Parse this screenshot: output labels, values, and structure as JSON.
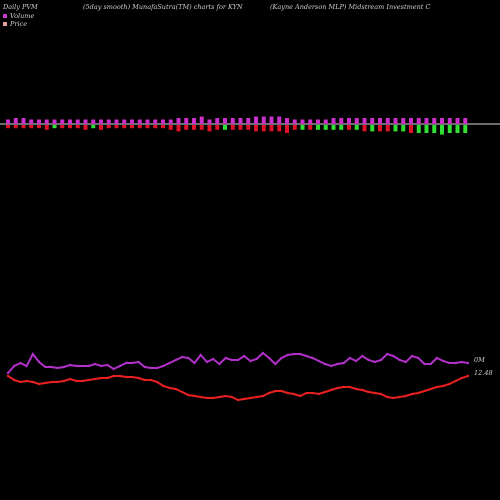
{
  "header": {
    "left": "Daily PVM",
    "middle": "(5day smooth) MunafaSutra(TM) charts for KYN",
    "right": "(Kayne  Anderson  MLP) Midstream Investment C"
  },
  "legend": [
    {
      "label": "Volume",
      "color": "#c83ccd"
    },
    {
      "label": "Price",
      "color": "#e8a0a0"
    }
  ],
  "colors": {
    "volume_up": "#c832c8",
    "volume_down_red": "#e0102a",
    "volume_down_green": "#30e030",
    "volume_line": "#b030c8",
    "price_line": "#e82020"
  },
  "chart_data": {
    "type": "line",
    "title": "Daily PVM",
    "right_labels": {
      "volume_line": "0M",
      "price_line": "12.48"
    },
    "volume_bars": {
      "values_up": [
        3,
        4,
        4,
        3,
        3,
        3,
        3,
        3,
        3,
        3,
        3,
        3,
        3,
        3,
        3,
        3,
        3,
        3,
        3,
        3,
        3,
        3,
        4,
        4,
        4,
        5,
        3,
        4,
        4,
        4,
        4,
        4,
        5,
        5,
        5,
        5,
        4,
        3,
        3,
        3,
        3,
        3,
        4,
        4,
        4,
        4,
        4,
        4,
        4,
        4,
        4,
        4,
        4,
        4,
        4,
        4,
        4,
        4,
        4,
        4
      ],
      "values_down": [
        2,
        2,
        2,
        2,
        2,
        3,
        2,
        2,
        2,
        2,
        3,
        2,
        3,
        2,
        2,
        2,
        2,
        2,
        2,
        2,
        2,
        3,
        4,
        3,
        3,
        3,
        4,
        3,
        3,
        3,
        3,
        3,
        4,
        4,
        4,
        4,
        5,
        3,
        3,
        3,
        3,
        3,
        3,
        3,
        3,
        3,
        4,
        4,
        4,
        4,
        4,
        4,
        5,
        5,
        5,
        5,
        6,
        5,
        5,
        5
      ],
      "down_colors": [
        "r",
        "r",
        "r",
        "r",
        "r",
        "r",
        "g",
        "r",
        "r",
        "r",
        "r",
        "g",
        "r",
        "r",
        "r",
        "r",
        "r",
        "r",
        "r",
        "r",
        "r",
        "r",
        "r",
        "r",
        "r",
        "r",
        "r",
        "r",
        "g",
        "r",
        "r",
        "r",
        "r",
        "r",
        "r",
        "r",
        "r",
        "r",
        "g",
        "r",
        "g",
        "g",
        "g",
        "g",
        "r",
        "g",
        "r",
        "g",
        "r",
        "r",
        "g",
        "g",
        "r",
        "g",
        "g",
        "g",
        "g",
        "g",
        "g",
        "g"
      ]
    },
    "volume_line": [
      373,
      366,
      363,
      366,
      354,
      362,
      367,
      367,
      368,
      367,
      365,
      366,
      366,
      366,
      364,
      366,
      365,
      369,
      366,
      363,
      363,
      362,
      367,
      368,
      368,
      366,
      363,
      360,
      357,
      358,
      363,
      355,
      362,
      359,
      364,
      358,
      360,
      360,
      356,
      361,
      359,
      353,
      358,
      364,
      358,
      355,
      354,
      354,
      356,
      358,
      361,
      364,
      366,
      364,
      363,
      358,
      361,
      356,
      360,
      362,
      360,
      354,
      356,
      360,
      362,
      356,
      358,
      364,
      364,
      358,
      361,
      363,
      363,
      362,
      363
    ],
    "price_line": [
      376,
      380,
      382,
      381,
      382,
      384,
      383,
      382,
      382,
      381,
      379,
      381,
      381,
      380,
      379,
      378,
      378,
      376,
      376,
      377,
      377,
      378,
      380,
      380,
      382,
      386,
      388,
      389,
      392,
      395,
      396,
      397,
      398,
      398,
      397,
      396,
      397,
      400,
      399,
      398,
      397,
      396,
      393,
      391,
      391,
      393,
      394,
      396,
      393,
      393,
      394,
      392,
      390,
      388,
      387,
      387,
      389,
      390,
      392,
      393,
      394,
      397,
      398,
      397,
      396,
      394,
      393,
      391,
      389,
      387,
      386,
      384,
      381,
      378,
      376
    ]
  }
}
